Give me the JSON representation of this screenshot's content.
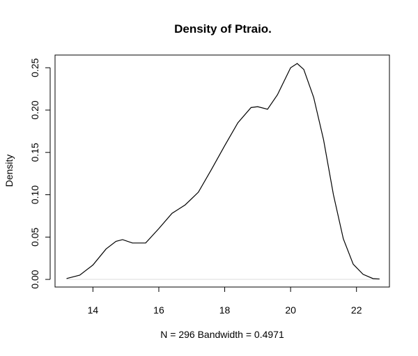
{
  "chart_data": {
    "type": "line",
    "title": "Density of Ptraio.",
    "xlabel": "N = 296   Bandwidth = 0.4971",
    "ylabel": "Density",
    "xlim": [
      12.85,
      23.0
    ],
    "ylim": [
      -0.009,
      0.265
    ],
    "x_ticks": [
      14,
      16,
      18,
      20,
      22
    ],
    "x_tick_labels": [
      "14",
      "16",
      "18",
      "20",
      "22"
    ],
    "y_ticks": [
      0.0,
      0.05,
      0.1,
      0.15,
      0.2,
      0.25
    ],
    "y_tick_labels": [
      "0.00",
      "0.05",
      "0.10",
      "0.15",
      "0.20",
      "0.25"
    ],
    "grid": false,
    "legend": "none",
    "series": [
      {
        "color": "#000000",
        "baseline_color": "#dddddd",
        "x": [
          13.2,
          13.6,
          14.0,
          14.4,
          14.7,
          14.9,
          15.2,
          15.6,
          16.0,
          16.4,
          16.8,
          17.2,
          17.6,
          18.0,
          18.4,
          18.8,
          19.0,
          19.3,
          19.6,
          20.0,
          20.2,
          20.4,
          20.7,
          21.0,
          21.3,
          21.6,
          21.9,
          22.2,
          22.5,
          22.7
        ],
        "y": [
          0.001,
          0.005,
          0.017,
          0.036,
          0.045,
          0.047,
          0.043,
          0.043,
          0.06,
          0.078,
          0.088,
          0.103,
          0.13,
          0.158,
          0.185,
          0.203,
          0.204,
          0.201,
          0.218,
          0.25,
          0.255,
          0.248,
          0.215,
          0.165,
          0.1,
          0.048,
          0.018,
          0.006,
          0.001,
          0.0005
        ]
      }
    ]
  }
}
